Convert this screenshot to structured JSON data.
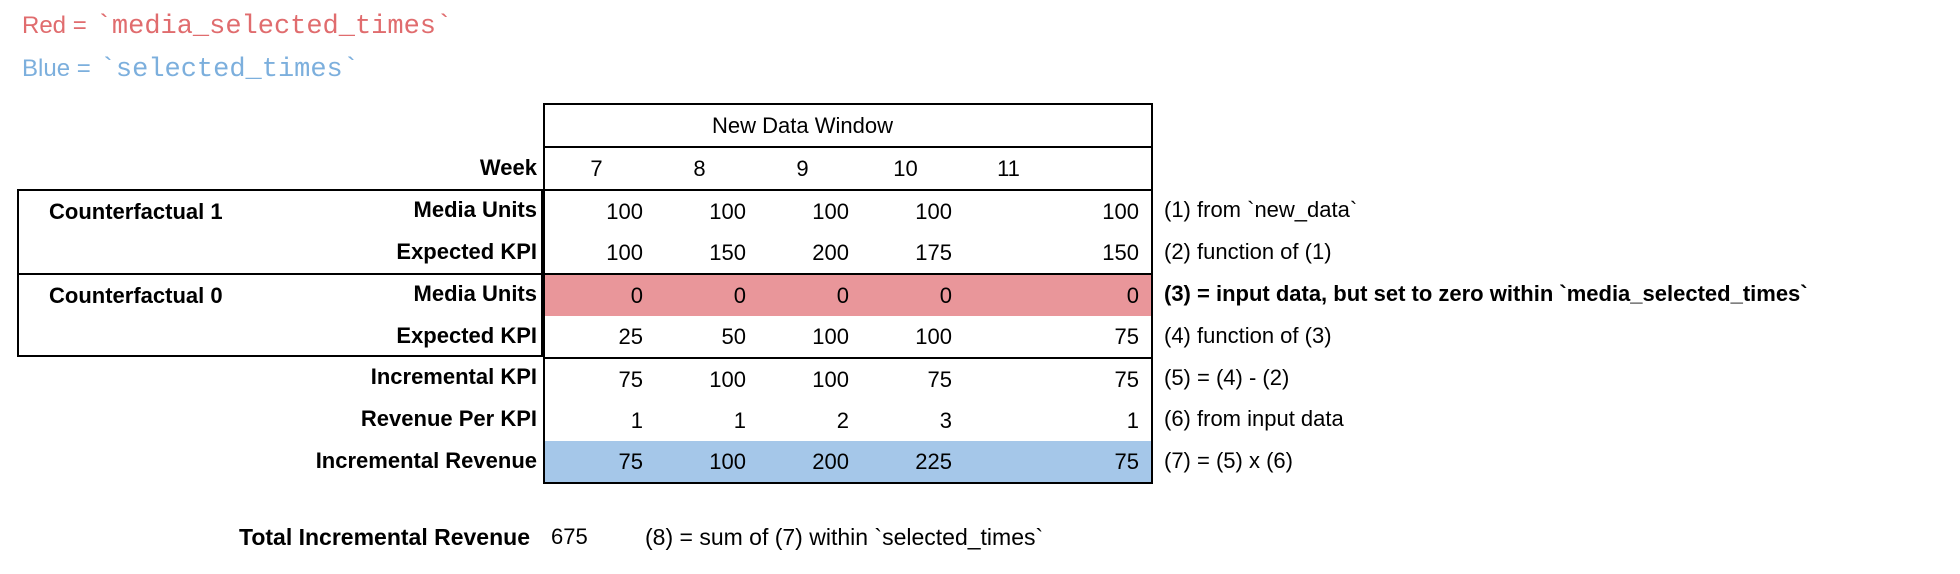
{
  "legend": {
    "red_label": "Red =",
    "red_code": "`media_selected_times`",
    "red_color": "#e06c6e",
    "blue_label": "Blue =",
    "blue_code": "`selected_times`",
    "blue_color": "#7cafdd"
  },
  "table": {
    "window_header": "New Data Window",
    "week_label": "Week",
    "weeks": [
      "7",
      "8",
      "9",
      "10",
      "11"
    ],
    "groups": [
      {
        "name": "Counterfactual 1"
      },
      {
        "name": "Counterfactual 0"
      }
    ],
    "highlight_colors": {
      "red_row": "#e9969a",
      "blue_row": "#a5c7e9"
    },
    "rows": [
      {
        "label": "Media Units",
        "values": [
          "100",
          "100",
          "100",
          "100",
          "100"
        ],
        "annotation": "(1) from `new_data`"
      },
      {
        "label": "Expected KPI",
        "values": [
          "100",
          "150",
          "200",
          "175",
          "150"
        ],
        "annotation": "(2) function of (1)"
      },
      {
        "label": "Media Units",
        "values": [
          "0",
          "0",
          "0",
          "0",
          "0"
        ],
        "annotation": "(3) = input data, but set to zero within `media_selected_times`",
        "highlight": "red"
      },
      {
        "label": "Expected KPI",
        "values": [
          "25",
          "50",
          "100",
          "100",
          "75"
        ],
        "annotation": "(4) function of (3)"
      },
      {
        "label": "Incremental KPI",
        "values": [
          "75",
          "100",
          "100",
          "75",
          "75"
        ],
        "annotation": "(5) = (4) - (2)"
      },
      {
        "label": "Revenue Per KPI",
        "values": [
          "1",
          "1",
          "2",
          "3",
          "1"
        ],
        "annotation": "(6) from input data"
      },
      {
        "label": "Incremental Revenue",
        "values": [
          "75",
          "100",
          "200",
          "225",
          "75"
        ],
        "annotation": "(7) = (5) x (6)",
        "highlight": "blue"
      }
    ]
  },
  "total": {
    "label": "Total Incremental Revenue",
    "value": "675",
    "annotation": "(8) = sum of (7) within `selected_times`"
  }
}
